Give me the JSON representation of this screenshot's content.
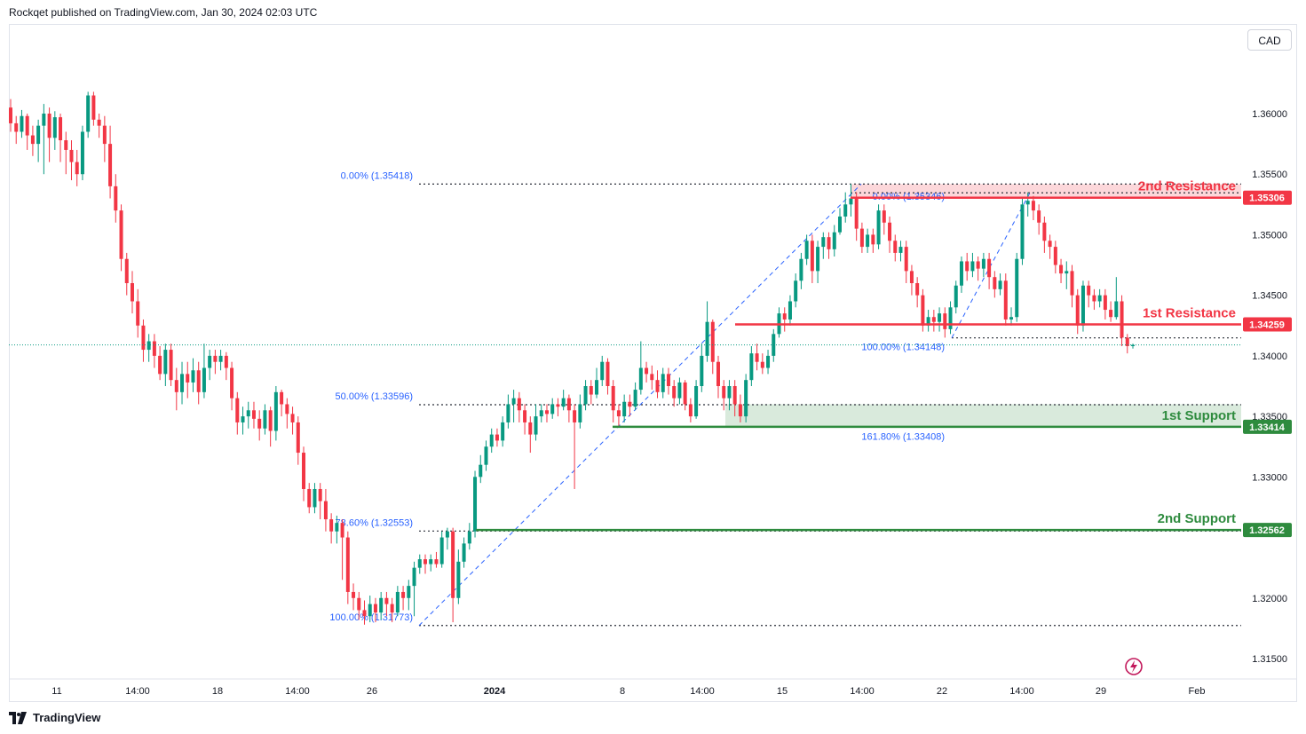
{
  "header": {
    "publisher": "Rockqet published on TradingView.com, Jan 30, 2024 02:03 UTC"
  },
  "currency_button": "CAD",
  "footer": {
    "brand": "TradingView",
    "logo_icon": "tradingview-logo-icon"
  },
  "colors": {
    "up": "#089981",
    "down": "#f23645",
    "resistance": "#f23645",
    "support": "#2e8b3e",
    "fib": "#2962ff",
    "fib_text": "#2962ff"
  },
  "chart_data": {
    "type": "candlestick",
    "symbol_currency": "CAD",
    "y_ticks": [
      "1.36000",
      "1.35500",
      "1.35000",
      "1.34500",
      "1.34000",
      "1.33500",
      "1.33000",
      "1.32000",
      "1.31500"
    ],
    "x_ticks": [
      "11",
      "14:00",
      "18",
      "14:00",
      "26",
      "2024",
      "8",
      "14:00",
      "15",
      "14:00",
      "22",
      "14:00",
      "29",
      "Feb"
    ],
    "price_tags": [
      {
        "label": "1.35306",
        "value": 1.35306,
        "color": "#f23645"
      },
      {
        "label": "1.34259",
        "value": 1.34259,
        "color": "#f23645"
      },
      {
        "label": "1.33414",
        "value": 1.33414,
        "color": "#2e8b3e"
      },
      {
        "label": "1.32562",
        "value": 1.32562,
        "color": "#2e8b3e"
      }
    ],
    "levels": [
      {
        "name": "2nd Resistance",
        "value": 1.35306,
        "kind": "resistance"
      },
      {
        "name": "1st Resistance",
        "value": 1.34259,
        "kind": "resistance"
      },
      {
        "name": "1st Support",
        "value": 1.33414,
        "kind": "support"
      },
      {
        "name": "2nd Support",
        "value": 1.32562,
        "kind": "support"
      }
    ],
    "fib_labels": [
      {
        "text": "0.00% (1.35418)",
        "value": 1.35418
      },
      {
        "text": "50.00% (1.33596)",
        "value": 1.33596
      },
      {
        "text": "78.60% (1.32553)",
        "value": 1.32553
      },
      {
        "text": "100.00% (1.31773)",
        "value": 1.31773
      },
      {
        "text": "0.00% (1.35346)",
        "value": 1.35346
      },
      {
        "text": "100.00% (1.34148)",
        "value": 1.34148
      },
      {
        "text": "161.80% (1.33408)",
        "value": 1.33408
      }
    ],
    "last_price": 1.3409,
    "candles": [
      [
        1.3605,
        1.3592,
        1.3612,
        1.3585
      ],
      [
        1.3592,
        1.3585,
        1.3598,
        1.3575
      ],
      [
        1.3585,
        1.3598,
        1.3603,
        1.358
      ],
      [
        1.3598,
        1.3582,
        1.36,
        1.357
      ],
      [
        1.3582,
        1.3575,
        1.359,
        1.3565
      ],
      [
        1.3575,
        1.359,
        1.3595,
        1.356
      ],
      [
        1.359,
        1.36,
        1.3608,
        1.355
      ],
      [
        1.36,
        1.358,
        1.3605,
        1.356
      ],
      [
        1.358,
        1.3597,
        1.3602,
        1.357
      ],
      [
        1.3597,
        1.3578,
        1.36,
        1.356
      ],
      [
        1.3578,
        1.357,
        1.3585,
        1.355
      ],
      [
        1.357,
        1.356,
        1.3578,
        1.3545
      ],
      [
        1.356,
        1.355,
        1.357,
        1.354
      ],
      [
        1.355,
        1.3585,
        1.359,
        1.3545
      ],
      [
        1.3585,
        1.3615,
        1.3618,
        1.358
      ],
      [
        1.3615,
        1.3595,
        1.3618,
        1.359
      ],
      [
        1.3595,
        1.359,
        1.36,
        1.358
      ],
      [
        1.359,
        1.3575,
        1.3598,
        1.356
      ],
      [
        1.3575,
        1.354,
        1.359,
        1.353
      ],
      [
        1.354,
        1.352,
        1.355,
        1.351
      ],
      [
        1.352,
        1.348,
        1.3525,
        1.347
      ],
      [
        1.348,
        1.346,
        1.3485,
        1.345
      ],
      [
        1.346,
        1.3445,
        1.347,
        1.3435
      ],
      [
        1.3445,
        1.3425,
        1.3455,
        1.3415
      ],
      [
        1.3425,
        1.3405,
        1.343,
        1.3395
      ],
      [
        1.3405,
        1.3412,
        1.3418,
        1.3395
      ],
      [
        1.3412,
        1.34,
        1.3418,
        1.339
      ],
      [
        1.34,
        1.3385,
        1.3408,
        1.338
      ],
      [
        1.3385,
        1.3405,
        1.341,
        1.3375
      ],
      [
        1.3405,
        1.338,
        1.341,
        1.3375
      ],
      [
        1.338,
        1.337,
        1.339,
        1.3355
      ],
      [
        1.337,
        1.3385,
        1.3395,
        1.336
      ],
      [
        1.3385,
        1.3378,
        1.3395,
        1.3365
      ],
      [
        1.3378,
        1.3388,
        1.3398,
        1.337
      ],
      [
        1.3388,
        1.337,
        1.3395,
        1.336
      ],
      [
        1.337,
        1.339,
        1.341,
        1.3365
      ],
      [
        1.339,
        1.34,
        1.3405,
        1.338
      ],
      [
        1.34,
        1.3395,
        1.3405,
        1.3385
      ],
      [
        1.3395,
        1.34,
        1.3405,
        1.3388
      ],
      [
        1.34,
        1.339,
        1.3403,
        1.338
      ],
      [
        1.339,
        1.3365,
        1.3395,
        1.3355
      ],
      [
        1.3365,
        1.3345,
        1.337,
        1.3335
      ],
      [
        1.3345,
        1.335,
        1.3358,
        1.3335
      ],
      [
        1.335,
        1.3355,
        1.3362,
        1.334
      ],
      [
        1.3355,
        1.3348,
        1.3362,
        1.334
      ],
      [
        1.3348,
        1.334,
        1.3355,
        1.333
      ],
      [
        1.334,
        1.3355,
        1.336,
        1.3335
      ],
      [
        1.3355,
        1.3338,
        1.3358,
        1.3325
      ],
      [
        1.3338,
        1.337,
        1.3375,
        1.333
      ],
      [
        1.337,
        1.336,
        1.3372,
        1.335
      ],
      [
        1.336,
        1.3352,
        1.3365,
        1.334
      ],
      [
        1.3352,
        1.3345,
        1.3358,
        1.3335
      ],
      [
        1.3345,
        1.332,
        1.335,
        1.331
      ],
      [
        1.332,
        1.329,
        1.3325,
        1.328
      ],
      [
        1.329,
        1.3275,
        1.3295,
        1.327
      ],
      [
        1.3275,
        1.329,
        1.3295,
        1.327
      ],
      [
        1.329,
        1.328,
        1.3295,
        1.3265
      ],
      [
        1.328,
        1.3265,
        1.329,
        1.3255
      ],
      [
        1.3265,
        1.3255,
        1.327,
        1.3245
      ],
      [
        1.3255,
        1.3262,
        1.3268,
        1.3245
      ],
      [
        1.3262,
        1.325,
        1.3265,
        1.3215
      ],
      [
        1.325,
        1.3205,
        1.3255,
        1.3195
      ],
      [
        1.3205,
        1.32,
        1.3212,
        1.319
      ],
      [
        1.32,
        1.319,
        1.3205,
        1.3182
      ],
      [
        1.319,
        1.3185,
        1.3198,
        1.3178
      ],
      [
        1.3185,
        1.3195,
        1.3202,
        1.318
      ],
      [
        1.3195,
        1.3188,
        1.32,
        1.318
      ],
      [
        1.3188,
        1.32,
        1.3205,
        1.3182
      ],
      [
        1.32,
        1.3195,
        1.3205,
        1.3185
      ],
      [
        1.3195,
        1.3188,
        1.32,
        1.318
      ],
      [
        1.3188,
        1.3205,
        1.321,
        1.3185
      ],
      [
        1.3205,
        1.32,
        1.321,
        1.319
      ],
      [
        1.32,
        1.321,
        1.3215,
        1.319
      ],
      [
        1.321,
        1.3225,
        1.323,
        1.3185
      ],
      [
        1.3225,
        1.3232,
        1.3236,
        1.322
      ],
      [
        1.3232,
        1.3228,
        1.3236,
        1.322
      ],
      [
        1.3228,
        1.3232,
        1.3236,
        1.3222
      ],
      [
        1.3232,
        1.3228,
        1.3238,
        1.3225
      ],
      [
        1.3228,
        1.325,
        1.3255,
        1.3225
      ],
      [
        1.325,
        1.3255,
        1.3258,
        1.324
      ],
      [
        1.3255,
        1.32,
        1.3258,
        1.318
      ],
      [
        1.32,
        1.323,
        1.324,
        1.3195
      ],
      [
        1.323,
        1.3245,
        1.325,
        1.3225
      ],
      [
        1.3245,
        1.3255,
        1.3262,
        1.324
      ],
      [
        1.3255,
        1.33,
        1.3305,
        1.325
      ],
      [
        1.33,
        1.331,
        1.3318,
        1.3295
      ],
      [
        1.331,
        1.3325,
        1.333,
        1.3305
      ],
      [
        1.3325,
        1.3335,
        1.334,
        1.332
      ],
      [
        1.3335,
        1.333,
        1.334,
        1.3325
      ],
      [
        1.333,
        1.3345,
        1.335,
        1.3325
      ],
      [
        1.3345,
        1.336,
        1.3368,
        1.334
      ],
      [
        1.336,
        1.3365,
        1.3372,
        1.3345
      ],
      [
        1.3365,
        1.3355,
        1.337,
        1.3345
      ],
      [
        1.3355,
        1.3345,
        1.336,
        1.3335
      ],
      [
        1.3345,
        1.3335,
        1.335,
        1.332
      ],
      [
        1.3335,
        1.335,
        1.336,
        1.333
      ],
      [
        1.335,
        1.3355,
        1.336,
        1.3345
      ],
      [
        1.3355,
        1.3352,
        1.336,
        1.3345
      ],
      [
        1.3352,
        1.336,
        1.3365,
        1.3348
      ],
      [
        1.336,
        1.3358,
        1.3365,
        1.335
      ],
      [
        1.3358,
        1.3365,
        1.3372,
        1.3355
      ],
      [
        1.3365,
        1.3355,
        1.3368,
        1.3345
      ],
      [
        1.3355,
        1.3345,
        1.336,
        1.329
      ],
      [
        1.3345,
        1.336,
        1.3368,
        1.334
      ],
      [
        1.336,
        1.3375,
        1.338,
        1.3355
      ],
      [
        1.3375,
        1.3368,
        1.338,
        1.336
      ],
      [
        1.3368,
        1.338,
        1.339,
        1.3365
      ],
      [
        1.338,
        1.3395,
        1.34,
        1.3375
      ],
      [
        1.3395,
        1.3375,
        1.3398,
        1.3368
      ],
      [
        1.3375,
        1.3355,
        1.338,
        1.3345
      ],
      [
        1.3355,
        1.335,
        1.336,
        1.3342
      ],
      [
        1.335,
        1.3362,
        1.3368,
        1.3345
      ],
      [
        1.3362,
        1.3358,
        1.3368,
        1.335
      ],
      [
        1.3358,
        1.3372,
        1.3378,
        1.3355
      ],
      [
        1.3372,
        1.339,
        1.3412,
        1.3368
      ],
      [
        1.339,
        1.3385,
        1.3395,
        1.3378
      ],
      [
        1.3385,
        1.338,
        1.3392,
        1.3372
      ],
      [
        1.338,
        1.337,
        1.3388,
        1.3365
      ],
      [
        1.337,
        1.3385,
        1.339,
        1.3365
      ],
      [
        1.3385,
        1.3375,
        1.339,
        1.3368
      ],
      [
        1.3375,
        1.3365,
        1.338,
        1.3358
      ],
      [
        1.3365,
        1.3378,
        1.3382,
        1.336
      ],
      [
        1.3378,
        1.336,
        1.338,
        1.3355
      ],
      [
        1.336,
        1.335,
        1.3365,
        1.3345
      ],
      [
        1.335,
        1.3375,
        1.338,
        1.3348
      ],
      [
        1.3375,
        1.34,
        1.341,
        1.337
      ],
      [
        1.34,
        1.3428,
        1.3445,
        1.3395
      ],
      [
        1.3428,
        1.3395,
        1.343,
        1.3385
      ],
      [
        1.3395,
        1.3375,
        1.34,
        1.3365
      ],
      [
        1.3375,
        1.3365,
        1.338,
        1.3355
      ],
      [
        1.3365,
        1.3375,
        1.338,
        1.3355
      ],
      [
        1.3375,
        1.336,
        1.338,
        1.335
      ],
      [
        1.336,
        1.335,
        1.3368,
        1.3345
      ],
      [
        1.335,
        1.338,
        1.3385,
        1.3345
      ],
      [
        1.338,
        1.3402,
        1.3408,
        1.3375
      ],
      [
        1.3402,
        1.3395,
        1.341,
        1.3388
      ],
      [
        1.3395,
        1.339,
        1.3402,
        1.3385
      ],
      [
        1.339,
        1.34,
        1.3405,
        1.3385
      ],
      [
        1.34,
        1.3418,
        1.3422,
        1.3395
      ],
      [
        1.3418,
        1.3435,
        1.344,
        1.3415
      ],
      [
        1.3435,
        1.343,
        1.344,
        1.342
      ],
      [
        1.343,
        1.3445,
        1.345,
        1.3425
      ],
      [
        1.3445,
        1.3462,
        1.3468,
        1.344
      ],
      [
        1.3462,
        1.348,
        1.3485,
        1.3455
      ],
      [
        1.348,
        1.3495,
        1.35,
        1.3475
      ],
      [
        1.3495,
        1.347,
        1.35,
        1.346
      ],
      [
        1.347,
        1.349,
        1.3495,
        1.346
      ],
      [
        1.349,
        1.3498,
        1.3502,
        1.348
      ],
      [
        1.3498,
        1.3488,
        1.3502,
        1.348
      ],
      [
        1.3488,
        1.3502,
        1.3508,
        1.3482
      ],
      [
        1.3502,
        1.3515,
        1.3522,
        1.35
      ],
      [
        1.3515,
        1.3525,
        1.3535,
        1.351
      ],
      [
        1.3525,
        1.353,
        1.3542,
        1.3515
      ],
      [
        1.353,
        1.3505,
        1.3535,
        1.3495
      ],
      [
        1.3505,
        1.349,
        1.351,
        1.3485
      ],
      [
        1.349,
        1.35,
        1.3505,
        1.3485
      ],
      [
        1.35,
        1.3492,
        1.3505,
        1.3485
      ],
      [
        1.3492,
        1.352,
        1.3525,
        1.3488
      ],
      [
        1.352,
        1.351,
        1.3525,
        1.35
      ],
      [
        1.351,
        1.3495,
        1.3515,
        1.3485
      ],
      [
        1.3495,
        1.3485,
        1.35,
        1.3478
      ],
      [
        1.3485,
        1.349,
        1.3495,
        1.3478
      ],
      [
        1.349,
        1.347,
        1.3495,
        1.346
      ],
      [
        1.347,
        1.346,
        1.3475,
        1.345
      ],
      [
        1.346,
        1.345,
        1.3465,
        1.344
      ],
      [
        1.345,
        1.3425,
        1.3455,
        1.342
      ],
      [
        1.3425,
        1.3432,
        1.3438,
        1.342
      ],
      [
        1.3432,
        1.3428,
        1.3438,
        1.342
      ],
      [
        1.3428,
        1.3435,
        1.344,
        1.342
      ],
      [
        1.3435,
        1.3422,
        1.344,
        1.3415
      ],
      [
        1.3422,
        1.344,
        1.3445,
        1.3418
      ],
      [
        1.344,
        1.3458,
        1.3462,
        1.3435
      ],
      [
        1.3458,
        1.3478,
        1.3482,
        1.3452
      ],
      [
        1.3478,
        1.347,
        1.3485,
        1.3462
      ],
      [
        1.347,
        1.3478,
        1.3485,
        1.3465
      ],
      [
        1.3478,
        1.3472,
        1.3482,
        1.3462
      ],
      [
        1.3472,
        1.348,
        1.3485,
        1.3465
      ],
      [
        1.348,
        1.3465,
        1.3485,
        1.3455
      ],
      [
        1.3465,
        1.3455,
        1.347,
        1.3448
      ],
      [
        1.3455,
        1.3462,
        1.3468,
        1.345
      ],
      [
        1.3462,
        1.343,
        1.3468,
        1.3425
      ],
      [
        1.343,
        1.3432,
        1.344,
        1.3425
      ],
      [
        1.3432,
        1.348,
        1.3485,
        1.3428
      ],
      [
        1.348,
        1.3525,
        1.353,
        1.3475
      ],
      [
        1.3525,
        1.3528,
        1.3535,
        1.3515
      ],
      [
        1.3528,
        1.352,
        1.3532,
        1.3512
      ],
      [
        1.352,
        1.351,
        1.3525,
        1.35
      ],
      [
        1.351,
        1.3495,
        1.3515,
        1.3485
      ],
      [
        1.3495,
        1.349,
        1.35,
        1.348
      ],
      [
        1.349,
        1.3475,
        1.3495,
        1.3468
      ],
      [
        1.3475,
        1.3468,
        1.348,
        1.346
      ],
      [
        1.3468,
        1.347,
        1.3478,
        1.3455
      ],
      [
        1.347,
        1.345,
        1.3475,
        1.344
      ],
      [
        1.345,
        1.3425,
        1.3455,
        1.3418
      ],
      [
        1.3425,
        1.3458,
        1.3462,
        1.342
      ],
      [
        1.3458,
        1.345,
        1.3462,
        1.344
      ],
      [
        1.345,
        1.3445,
        1.3455,
        1.3438
      ],
      [
        1.3445,
        1.345,
        1.3455,
        1.344
      ],
      [
        1.345,
        1.3438,
        1.3455,
        1.343
      ],
      [
        1.3438,
        1.3432,
        1.3445,
        1.3428
      ],
      [
        1.3432,
        1.3445,
        1.3465,
        1.343
      ],
      [
        1.3445,
        1.3415,
        1.345,
        1.3408
      ],
      [
        1.3415,
        1.3408,
        1.3418,
        1.3402
      ],
      [
        1.3408,
        1.3409,
        1.341,
        1.3406
      ]
    ]
  }
}
